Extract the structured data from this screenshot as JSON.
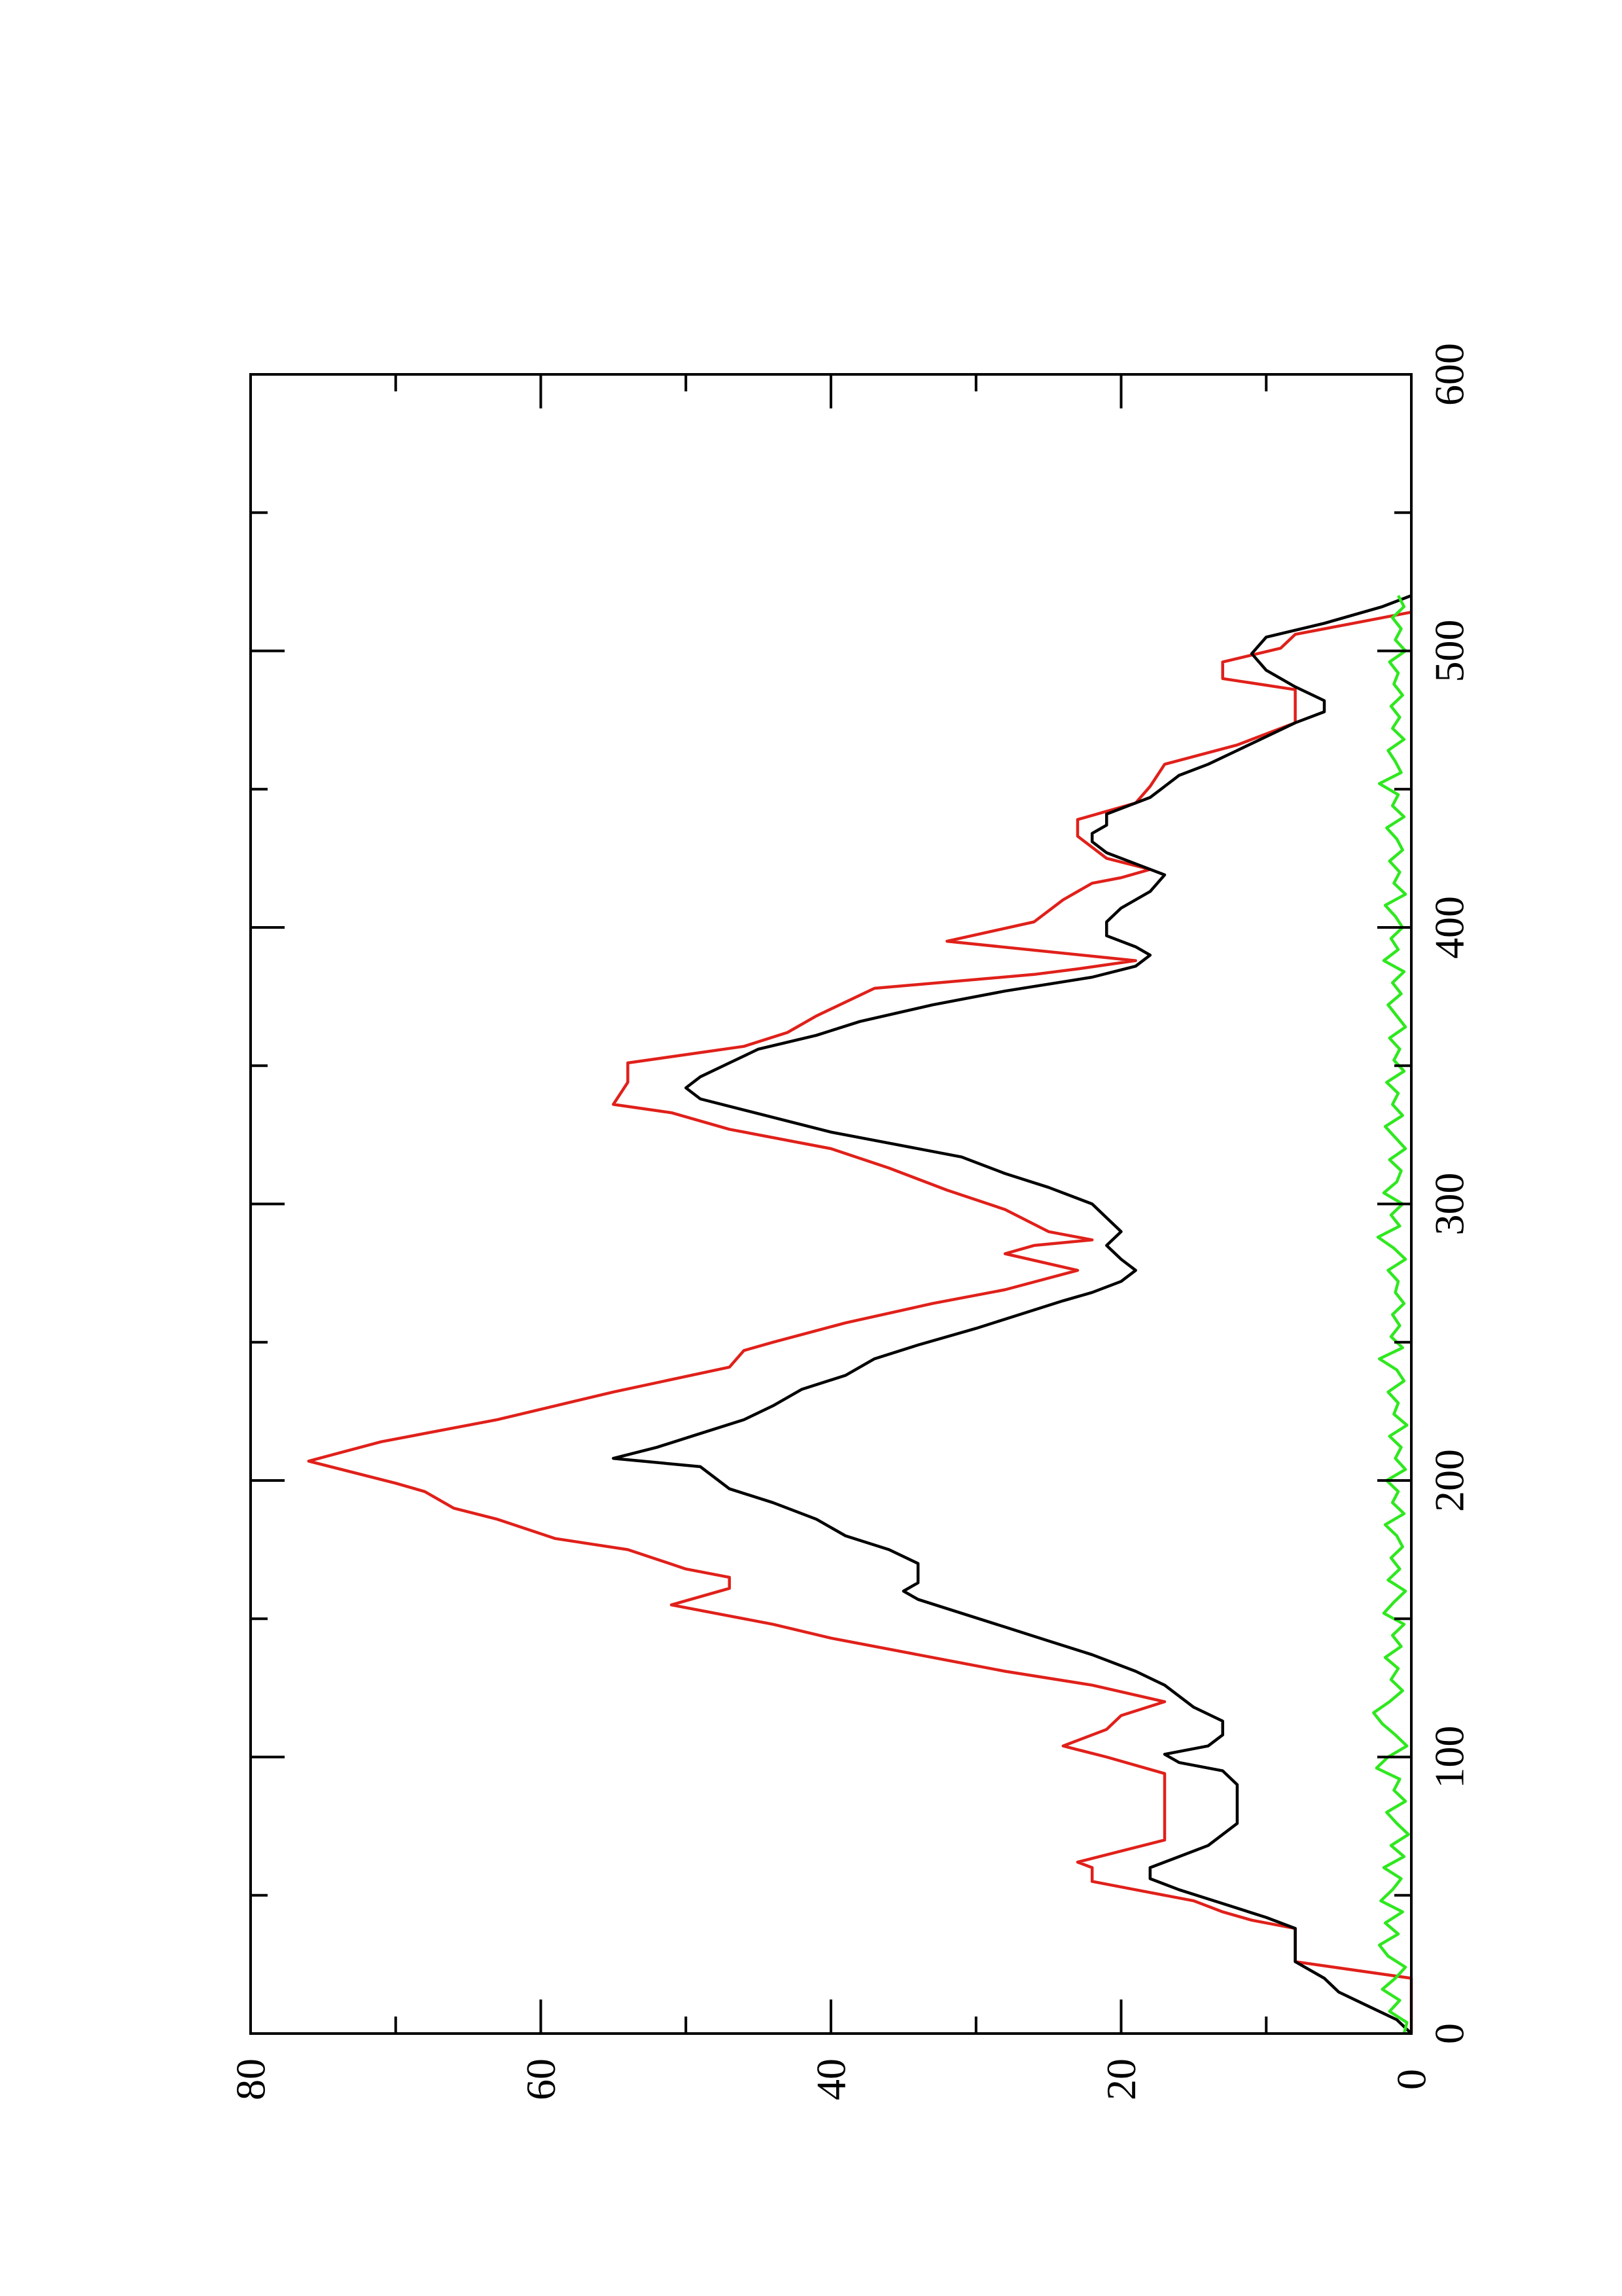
{
  "chart_data": {
    "type": "line",
    "orientation": "rotated 90 degrees counter-clockwise (x axis runs bottom-to-top on the page, y axis runs left-to-right)",
    "title": "",
    "xlabel": "",
    "ylabel": "",
    "xlim": [
      0,
      600
    ],
    "ylim": [
      0,
      80
    ],
    "x_ticks": [
      "0",
      "100",
      "200",
      "300",
      "400",
      "500",
      "600"
    ],
    "y_ticks": [
      "0",
      "20",
      "40",
      "60",
      "80"
    ],
    "grid": false,
    "legend": "none",
    "series": [
      {
        "color": "#e0201a",
        "x": [
          0,
          3,
          10,
          20,
          26,
          38,
          41,
          44,
          48,
          52,
          55,
          60,
          62,
          70,
          76,
          86,
          94,
          100,
          104,
          110,
          115,
          120,
          126,
          131,
          137,
          143,
          148,
          155,
          161,
          165,
          168,
          175,
          179,
          186,
          190,
          196,
          199,
          207,
          214,
          222,
          232,
          241,
          247,
          250,
          257,
          264,
          269,
          276,
          282,
          285,
          287,
          290,
          298,
          305,
          313,
          320,
          327,
          333,
          336,
          344,
          351,
          357,
          362,
          368,
          378,
          383,
          385,
          388,
          395,
          402,
          410,
          416,
          418,
          421,
          425,
          433,
          439,
          445,
          451,
          459,
          466,
          474,
          480,
          486,
          490,
          496,
          501,
          506,
          510,
          514
        ],
        "y": [
          0,
          0,
          0,
          0,
          8,
          8,
          11,
          13,
          15,
          19,
          22,
          22,
          23,
          17,
          17,
          17,
          17,
          21,
          24,
          21,
          20,
          17,
          22,
          28,
          34,
          40,
          44,
          51,
          47,
          47,
          50,
          54,
          59,
          63,
          66,
          68,
          70,
          76,
          71,
          63,
          55,
          47,
          46,
          44,
          39,
          33,
          28,
          23,
          28,
          26,
          22,
          25,
          28,
          32,
          36,
          40,
          47,
          51,
          55,
          54,
          54,
          46,
          43,
          41,
          37,
          26,
          23,
          19,
          32,
          26,
          24,
          22,
          20,
          18,
          21,
          23,
          23,
          19,
          18,
          17,
          12,
          8,
          8,
          8,
          13,
          13,
          9,
          8,
          4,
          0
        ]
      },
      {
        "color": "#000000",
        "x": [
          0,
          5,
          10,
          15,
          20,
          26,
          31,
          38,
          42,
          47,
          52,
          56,
          60,
          64,
          68,
          72,
          76,
          80,
          86,
          90,
          95,
          98,
          101,
          104,
          108,
          113,
          118,
          122,
          126,
          131,
          137,
          142,
          147,
          152,
          157,
          160,
          163,
          166,
          170,
          175,
          180,
          186,
          192,
          197,
          201,
          205,
          208,
          212,
          217,
          222,
          227,
          233,
          238,
          244,
          249,
          255,
          260,
          265,
          268,
          272,
          276,
          280,
          285,
          290,
          295,
          300,
          306,
          311,
          317,
          322,
          326,
          330,
          334,
          338,
          342,
          346,
          351,
          356,
          361,
          366,
          372,
          377,
          382,
          386,
          390,
          393,
          397,
          402,
          407,
          413,
          419,
          423,
          427,
          431,
          434,
          437,
          441,
          447,
          451,
          455,
          459,
          464,
          469,
          474,
          478,
          482,
          487,
          493,
          499,
          505,
          510,
          516,
          520
        ],
        "y": [
          0,
          1,
          3,
          5,
          6,
          8,
          8,
          8,
          10,
          13,
          16,
          18,
          18,
          16,
          14,
          13,
          12,
          12,
          12,
          12,
          13,
          16,
          17,
          14,
          13,
          13,
          15,
          16,
          17,
          19,
          22,
          25,
          28,
          31,
          34,
          35,
          34,
          34,
          34,
          36,
          39,
          41,
          44,
          47,
          48,
          49,
          55,
          52,
          49,
          46,
          44,
          42,
          39,
          37,
          34,
          30,
          27,
          24,
          22,
          20,
          19,
          20,
          21,
          20,
          21,
          22,
          25,
          28,
          31,
          36,
          40,
          43,
          46,
          49,
          50,
          49,
          47,
          45,
          41,
          38,
          33,
          28,
          22,
          19,
          18,
          19,
          21,
          21,
          20,
          18,
          17,
          19,
          21,
          22,
          22,
          21,
          21,
          18,
          17,
          16,
          14,
          12,
          10,
          8,
          6,
          6,
          8,
          10,
          11,
          10,
          6,
          2,
          0
        ]
      },
      {
        "color": "#2ee81e",
        "x": [
          0,
          4,
          8,
          12,
          16,
          20,
          24,
          28,
          32,
          36,
          40,
          44,
          48,
          52,
          56,
          60,
          64,
          68,
          72,
          76,
          80,
          84,
          88,
          92,
          96,
          100,
          104,
          108,
          112,
          116,
          120,
          124,
          128,
          132,
          136,
          140,
          144,
          148,
          152,
          156,
          160,
          164,
          168,
          172,
          176,
          180,
          184,
          188,
          192,
          196,
          200,
          204,
          208,
          212,
          216,
          220,
          224,
          228,
          232,
          236,
          240,
          244,
          248,
          252,
          256,
          260,
          264,
          268,
          272,
          276,
          280,
          284,
          288,
          292,
          296,
          300,
          304,
          308,
          312,
          316,
          320,
          324,
          328,
          332,
          336,
          340,
          344,
          348,
          352,
          356,
          360,
          364,
          368,
          372,
          376,
          380,
          384,
          388,
          392,
          396,
          400,
          404,
          408,
          412,
          416,
          420,
          424,
          428,
          432,
          436,
          440,
          444,
          448,
          452,
          456,
          460,
          464,
          468,
          472,
          476,
          480,
          484,
          488,
          492,
          496,
          500,
          504,
          508,
          512,
          516,
          520
        ],
        "y": [
          0.5,
          0.3,
          1.5,
          0.8,
          2.0,
          1.1,
          0.4,
          1.6,
          2.2,
          0.9,
          1.8,
          0.6,
          2.1,
          1.3,
          0.7,
          1.9,
          0.5,
          1.4,
          0.2,
          1.0,
          1.7,
          0.4,
          1.2,
          0.8,
          2.4,
          1.6,
          0.3,
          1.1,
          2.0,
          2.6,
          1.5,
          0.6,
          1.4,
          0.9,
          1.8,
          0.7,
          1.3,
          0.5,
          1.9,
          1.2,
          0.4,
          1.6,
          0.8,
          1.4,
          0.6,
          1.0,
          1.8,
          0.5,
          1.3,
          0.9,
          1.7,
          0.4,
          1.1,
          0.7,
          1.5,
          0.3,
          1.2,
          0.9,
          1.6,
          0.5,
          1.0,
          2.2,
          0.6,
          1.4,
          0.8,
          1.3,
          0.5,
          1.1,
          0.9,
          1.6,
          0.4,
          1.2,
          2.3,
          0.8,
          1.4,
          0.6,
          1.9,
          1.0,
          0.7,
          1.5,
          0.4,
          1.1,
          1.8,
          0.6,
          1.3,
          0.9,
          1.7,
          0.5,
          1.2,
          0.8,
          1.5,
          0.4,
          1.0,
          1.6,
          0.7,
          1.3,
          0.5,
          1.9,
          0.9,
          1.4,
          0.6,
          1.1,
          1.8,
          0.4,
          1.2,
          0.8,
          1.5,
          0.6,
          1.0,
          1.7,
          0.5,
          1.3,
          0.9,
          2.2,
          0.7,
          1.1,
          1.6,
          0.5,
          1.3,
          0.8,
          1.4,
          0.6,
          1.2,
          0.9,
          1.5,
          0.4,
          1.1,
          0.7,
          1.3,
          0.5,
          0.9
        ]
      }
    ]
  }
}
